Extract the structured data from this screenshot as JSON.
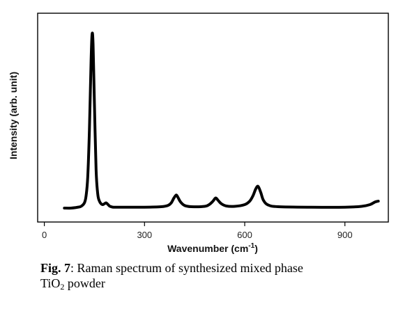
{
  "chart_data": {
    "type": "line",
    "title": "",
    "xlabel": "Wavenumber (cm",
    "xlabel_sup": "-1",
    "xlabel_close": ")",
    "ylabel": "Intensity (arb. unit)",
    "xlim": [
      -20,
      1030
    ],
    "ylim": [
      -0.08,
      1.12
    ],
    "xticks": [
      0,
      300,
      600,
      900
    ],
    "yticks_shown": false,
    "grid": false,
    "line_color": "#000000",
    "series": [
      {
        "name": "",
        "x": [
          60,
          80,
          100,
          110,
          120,
          125,
          130,
          135,
          140,
          143,
          146,
          150,
          155,
          160,
          165,
          170,
          175,
          180,
          185,
          190,
          195,
          200,
          210,
          250,
          300,
          350,
          370,
          380,
          388,
          395,
          400,
          408,
          420,
          440,
          480,
          495,
          505,
          513,
          520,
          530,
          545,
          570,
          600,
          615,
          625,
          633,
          640,
          648,
          656,
          670,
          700,
          800,
          900,
          950,
          975,
          990,
          1000
        ],
        "y": [
          0.0,
          0.0,
          0.005,
          0.01,
          0.03,
          0.07,
          0.18,
          0.45,
          0.85,
          1.0,
          0.94,
          0.6,
          0.22,
          0.08,
          0.04,
          0.025,
          0.02,
          0.025,
          0.03,
          0.022,
          0.012,
          0.008,
          0.005,
          0.005,
          0.005,
          0.008,
          0.015,
          0.03,
          0.058,
          0.075,
          0.062,
          0.035,
          0.015,
          0.008,
          0.01,
          0.022,
          0.04,
          0.058,
          0.045,
          0.025,
          0.012,
          0.01,
          0.02,
          0.04,
          0.072,
          0.11,
          0.125,
          0.09,
          0.045,
          0.018,
          0.008,
          0.005,
          0.005,
          0.01,
          0.02,
          0.035,
          0.04
        ]
      }
    ]
  },
  "caption": {
    "fig_label": "Fig. 7",
    "text_line1": ": Raman spectrum of synthesized mixed phase",
    "text_line2_prefix": "TiO",
    "text_line2_sub": "2",
    "text_line2_suffix": " powder"
  }
}
